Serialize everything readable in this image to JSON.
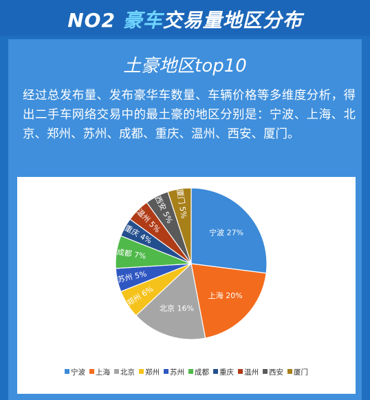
{
  "header": {
    "title_prefix": "NO2 ",
    "title_accent": "豪车",
    "title_rest": "交易量地区分布"
  },
  "panel": {
    "title": "土豪地区top10",
    "description": "经过总发布量、发布豪华车数量、车辆价格等多维度分析，得出二手车网络交易中的最土豪的地区分别是：宁波、上海、北京、郑州、苏州、成都、重庆、温州、西安、厦门。"
  },
  "colors": {
    "header_bg": "#1b66b8",
    "panel_bg": "#3f8fdc",
    "accent": "#6fd4ff"
  },
  "chart_data": {
    "type": "pie",
    "categories": [
      "宁波",
      "上海",
      "北京",
      "郑州",
      "苏州",
      "成都",
      "重庆",
      "温州",
      "西安",
      "厦门"
    ],
    "values": [
      27,
      20,
      16,
      6,
      5,
      7,
      4,
      5,
      5,
      5
    ],
    "labels": [
      "宁波 27%",
      "上海 20%",
      "北京 16%",
      "郑州 6%",
      "苏州 5%",
      "成都 7%",
      "重庆 4%",
      "温州 5%",
      "西安 5%",
      "厦门 5%"
    ],
    "colors": [
      "#3c8ad8",
      "#f36b1c",
      "#a6a6a6",
      "#f5c21c",
      "#2f57c2",
      "#4fb94a",
      "#244f8e",
      "#b03b17",
      "#5a5a5a",
      "#a8801a"
    ],
    "legend_position": "bottom"
  }
}
